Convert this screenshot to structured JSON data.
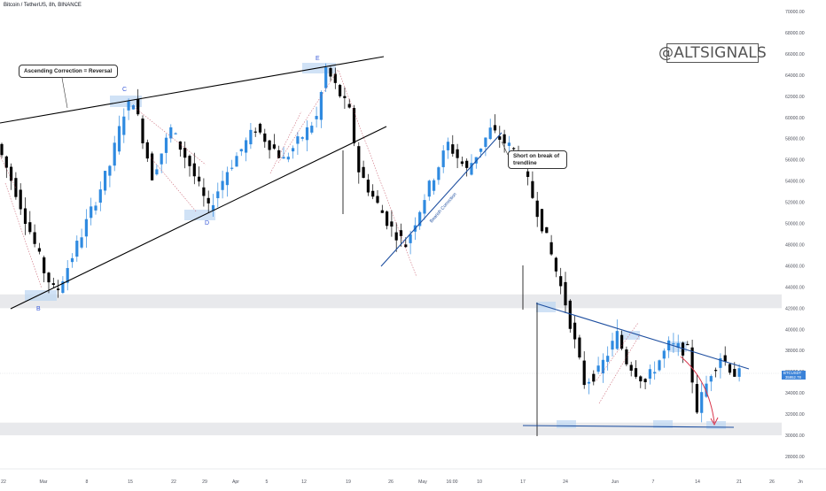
{
  "header": {
    "symbol_title": "Bitcoin / TetherUS, 8h, BINANCE"
  },
  "watermark": "@ALTSIGNALS",
  "price_badge": {
    "symbol": "BTCUSDT",
    "price": "35952.78",
    "countdown": "02:25:13"
  },
  "annotations": {
    "ascending_callout": "Ascending Correction = Reversal",
    "short_callout": "Short on break of trendline",
    "bearish_label": "Bearish Correction",
    "wave_labels": [
      "B",
      "C",
      "D",
      "E"
    ]
  },
  "colors": {
    "bull_candle": "#2f8ae0",
    "bear_candle": "#000000",
    "blue_trend": "#1e4fa0",
    "label_blue": "#3a5bd9",
    "zone_fill": "#e8e9ec",
    "highlight": "#bcd5f2",
    "arrow": "#d9344a"
  },
  "chart_data": {
    "type": "candlestick",
    "y_axis": {
      "ticks": [
        28000,
        30000,
        32000,
        34000,
        36000,
        38000,
        40000,
        42000,
        44000,
        46000,
        48000,
        50000,
        52000,
        54000,
        56000,
        58000,
        60000,
        62000,
        64000,
        66000,
        68000,
        70000
      ],
      "tick_labels": [
        "28000.00",
        "30000.00",
        "32000.00",
        "34000.00",
        "36000.00",
        "38000.00",
        "40000.00",
        "42000.00",
        "44000.00",
        "46000.00",
        "48000.00",
        "50000.00",
        "52000.00",
        "54000.00",
        "56000.00",
        "58000.00",
        "60000.00",
        "62000.00",
        "64000.00",
        "66000.00",
        "68000.00",
        "70000.00"
      ],
      "range": [
        27000,
        70500
      ]
    },
    "x_axis": {
      "tick_labels": [
        "22",
        "Mar",
        "8",
        "15",
        "22",
        "29",
        "Apr",
        "5",
        "12",
        "19",
        "26",
        "May",
        "16:00",
        "10",
        "17",
        "24",
        "Jun",
        "7",
        "14",
        "21",
        "26",
        "Jn"
      ]
    },
    "path_keypoints": [
      [
        0.0,
        57500
      ],
      [
        4.0,
        53000
      ],
      [
        10.0,
        45500
      ],
      [
        12.5,
        43300
      ],
      [
        18.0,
        49000
      ],
      [
        24.0,
        55500
      ],
      [
        27.0,
        60500
      ],
      [
        29.0,
        61700
      ],
      [
        33.0,
        54500
      ],
      [
        37.0,
        58900
      ],
      [
        41.0,
        55500
      ],
      [
        45.0,
        51300
      ],
      [
        49.0,
        55000
      ],
      [
        55.0,
        59000
      ],
      [
        61.0,
        56000
      ],
      [
        66.0,
        58800
      ],
      [
        68.0,
        60000
      ],
      [
        70.0,
        64600
      ],
      [
        75.0,
        60500
      ],
      [
        77.0,
        55000
      ],
      [
        80.0,
        52500
      ],
      [
        84.0,
        49500
      ],
      [
        87.0,
        48000
      ],
      [
        91.0,
        52500
      ],
      [
        96.0,
        57500
      ],
      [
        100.0,
        55000
      ],
      [
        105.0,
        58800
      ],
      [
        111.0,
        56500
      ],
      [
        115.0,
        51200
      ],
      [
        117.0,
        48500
      ],
      [
        121.0,
        42500
      ],
      [
        125.0,
        35000
      ],
      [
        128.0,
        36000
      ],
      [
        132.0,
        39500
      ],
      [
        134.0,
        37000
      ],
      [
        138.0,
        35000
      ],
      [
        143.0,
        38500
      ],
      [
        147.0,
        38000
      ],
      [
        149.0,
        32500
      ],
      [
        152.0,
        36000
      ],
      [
        154.0,
        37500
      ],
      [
        157.0,
        35800
      ]
    ],
    "zones": [
      {
        "name": "resistance-zone",
        "from": 42000,
        "to": 43300
      },
      {
        "name": "support-zone",
        "from": 30000,
        "to": 31200
      }
    ]
  }
}
